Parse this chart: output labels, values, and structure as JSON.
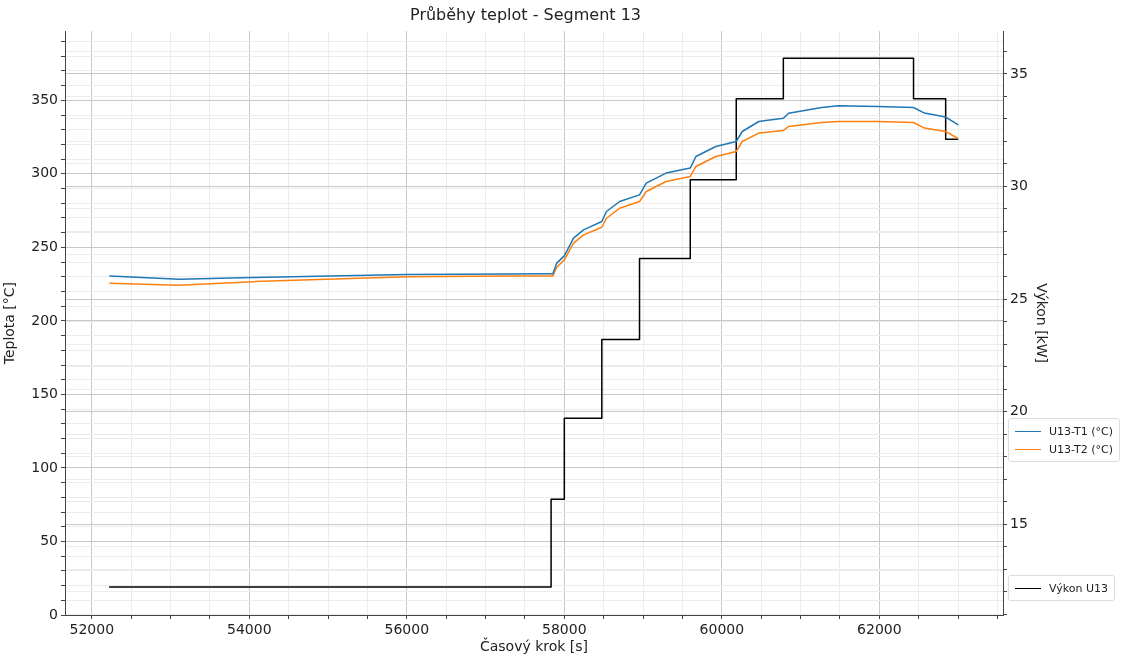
{
  "chart_data": {
    "type": "line",
    "title": "Průběhy teplot - Segment 13",
    "xlabel": "Časový krok [s]",
    "ylabel": "Teplota [°C]",
    "y2label": "Výkon [kW]",
    "grid": true,
    "legend": "right",
    "marker": "none",
    "line_style": "solid",
    "xlim": [
      51660,
      63570
    ],
    "ylim": [
      0,
      397
    ],
    "y2lim": [
      10.96,
      36.9
    ],
    "xticks": [
      52000,
      {
        "value": 52500,
        "label": null
      },
      {
        "value": 53000,
        "label": null
      },
      {
        "value": 53500,
        "label": null
      },
      54000,
      {
        "value": 54500,
        "label": null
      },
      {
        "value": 55000,
        "label": null
      },
      {
        "value": 55500,
        "label": null
      },
      56000,
      {
        "value": 56500,
        "label": null
      },
      {
        "value": 57000,
        "label": null
      },
      {
        "value": 57500,
        "label": null
      },
      58000,
      {
        "value": 58500,
        "label": null
      },
      {
        "value": 59000,
        "label": null
      },
      {
        "value": 59500,
        "label": null
      },
      60000,
      {
        "value": 60500,
        "label": null
      },
      {
        "value": 61000,
        "label": null
      },
      {
        "value": 61500,
        "label": null
      },
      62000,
      {
        "value": 62500,
        "label": null
      },
      {
        "value": 63000,
        "label": null
      },
      {
        "value": 63500,
        "label": null
      }
    ],
    "yticks": [
      0,
      {
        "value": 10,
        "label": null
      },
      {
        "value": 20,
        "label": null
      },
      {
        "value": 30,
        "label": null
      },
      {
        "value": 40,
        "label": null
      },
      50,
      {
        "value": 60,
        "label": null
      },
      {
        "value": 70,
        "label": null
      },
      {
        "value": 80,
        "label": null
      },
      {
        "value": 90,
        "label": null
      },
      100,
      {
        "value": 110,
        "label": null
      },
      {
        "value": 120,
        "label": null
      },
      {
        "value": 130,
        "label": null
      },
      {
        "value": 140,
        "label": null
      },
      150,
      {
        "value": 160,
        "label": null
      },
      {
        "value": 170,
        "label": null
      },
      {
        "value": 180,
        "label": null
      },
      {
        "value": 190,
        "label": null
      },
      200,
      {
        "value": 210,
        "label": null
      },
      {
        "value": 220,
        "label": null
      },
      {
        "value": 230,
        "label": null
      },
      {
        "value": 240,
        "label": null
      },
      250,
      {
        "value": 260,
        "label": null
      },
      {
        "value": 270,
        "label": null
      },
      {
        "value": 280,
        "label": null
      },
      {
        "value": 290,
        "label": null
      },
      300,
      {
        "value": 310,
        "label": null
      },
      {
        "value": 320,
        "label": null
      },
      {
        "value": 330,
        "label": null
      },
      {
        "value": 340,
        "label": null
      },
      350,
      {
        "value": 360,
        "label": null
      },
      {
        "value": 370,
        "label": null
      },
      {
        "value": 380,
        "label": null
      },
      {
        "value": 390,
        "label": null
      }
    ],
    "y2ticks": [
      {
        "value": 11,
        "label": null
      },
      {
        "value": 12,
        "label": null
      },
      {
        "value": 13,
        "label": null
      },
      {
        "value": 14,
        "label": null
      },
      15,
      {
        "value": 16,
        "label": null
      },
      {
        "value": 17,
        "label": null
      },
      {
        "value": 18,
        "label": null
      },
      {
        "value": 19,
        "label": null
      },
      20,
      {
        "value": 21,
        "label": null
      },
      {
        "value": 22,
        "label": null
      },
      {
        "value": 23,
        "label": null
      },
      {
        "value": 24,
        "label": null
      },
      25,
      {
        "value": 26,
        "label": null
      },
      {
        "value": 27,
        "label": null
      },
      {
        "value": 28,
        "label": null
      },
      {
        "value": 29,
        "label": null
      },
      30,
      {
        "value": 31,
        "label": null
      },
      {
        "value": 32,
        "label": null
      },
      {
        "value": 33,
        "label": null
      },
      {
        "value": 34,
        "label": null
      },
      35,
      {
        "value": 36,
        "label": null
      }
    ],
    "series": [
      {
        "name": "U13-T1 (°C)",
        "color": "#1f77b4",
        "x": [
          52225,
          53110,
          54040,
          56010,
          57693,
          57854,
          57904,
          58000,
          58117,
          58244,
          58476,
          58535,
          58703,
          58955,
          59040,
          59292,
          59599,
          59671,
          59923,
          60183,
          60259,
          60469,
          60781,
          60848,
          61268,
          61479,
          61984,
          62434,
          62573,
          62842,
          63002
        ],
        "values": [
          230.6,
          228.4,
          229.5,
          231.5,
          232,
          232,
          239.3,
          244.2,
          256.3,
          261.9,
          267.6,
          274.4,
          281.2,
          285.7,
          293.7,
          300.5,
          303.9,
          311.8,
          318.6,
          322,
          328.8,
          335.6,
          337.8,
          341.2,
          345.1,
          346.3,
          345.8,
          345.1,
          341.3,
          338.6,
          333.3
        ]
      },
      {
        "name": "U13-T2 (°C)",
        "color": "#ff7f0e",
        "x": [
          52225,
          53110,
          54040,
          56010,
          57693,
          57854,
          57904,
          58000,
          58117,
          58244,
          58476,
          58535,
          58703,
          58955,
          59040,
          59292,
          59599,
          59671,
          59923,
          60183,
          60259,
          60469,
          60781,
          60848,
          61268,
          61479,
          61984,
          62434,
          62573,
          62842,
          63002
        ],
        "values": [
          225.6,
          224.3,
          226.7,
          230.1,
          230.6,
          230.6,
          236.5,
          241.5,
          252.9,
          258.5,
          263.7,
          269.8,
          276.6,
          281.2,
          288,
          294.8,
          298.2,
          305,
          311.8,
          315.2,
          322,
          327.7,
          329.5,
          332.2,
          334.9,
          335.6,
          335.6,
          334.9,
          331.1,
          328.8,
          324
        ]
      },
      {
        "name": "Výkon U13",
        "type": "step",
        "axis": "y2",
        "color": "#000000",
        "x": [
          52220,
          57832,
          58000,
          58476,
          58955,
          59599,
          60183,
          60781,
          62434,
          62842,
          63002
        ],
        "values": [
          12.2,
          16.1,
          19.7,
          23.2,
          26.8,
          30.3,
          33.9,
          35.7,
          33.9,
          32.1,
          32.1
        ]
      }
    ]
  }
}
